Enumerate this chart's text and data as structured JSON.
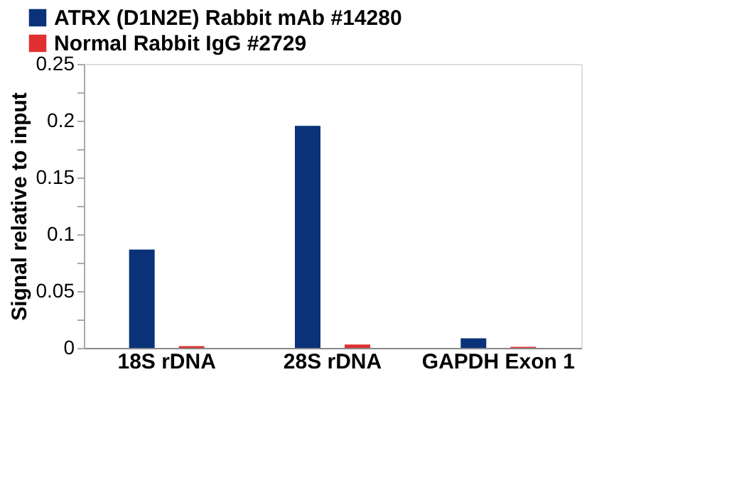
{
  "chart_data": {
    "type": "bar",
    "ylabel": "Signal relative to input",
    "categories": [
      "18S rDNA",
      "28S rDNA",
      "GAPDH Exon 1"
    ],
    "series": [
      {
        "name": "ATRX (D1N2E) Rabbit mAb #14280",
        "color": "#0a3278",
        "values": [
          0.0865,
          0.1955,
          0.0085
        ]
      },
      {
        "name": "Normal Rabbit IgG #2729",
        "color": "#e03030",
        "values": [
          0.0015,
          0.003,
          0.001
        ]
      }
    ],
    "ylim": [
      0,
      0.25
    ],
    "yticks": [
      0,
      {
        "value": 0.025,
        "label": null
      },
      0.05,
      {
        "value": 0.075,
        "label": null
      },
      0.1,
      {
        "value": 0.125,
        "label": null
      },
      0.15,
      {
        "value": 0.175,
        "label": null
      },
      0.2,
      {
        "value": 0.225,
        "label": null
      },
      0.25
    ],
    "grid": false,
    "legend": "top left"
  }
}
